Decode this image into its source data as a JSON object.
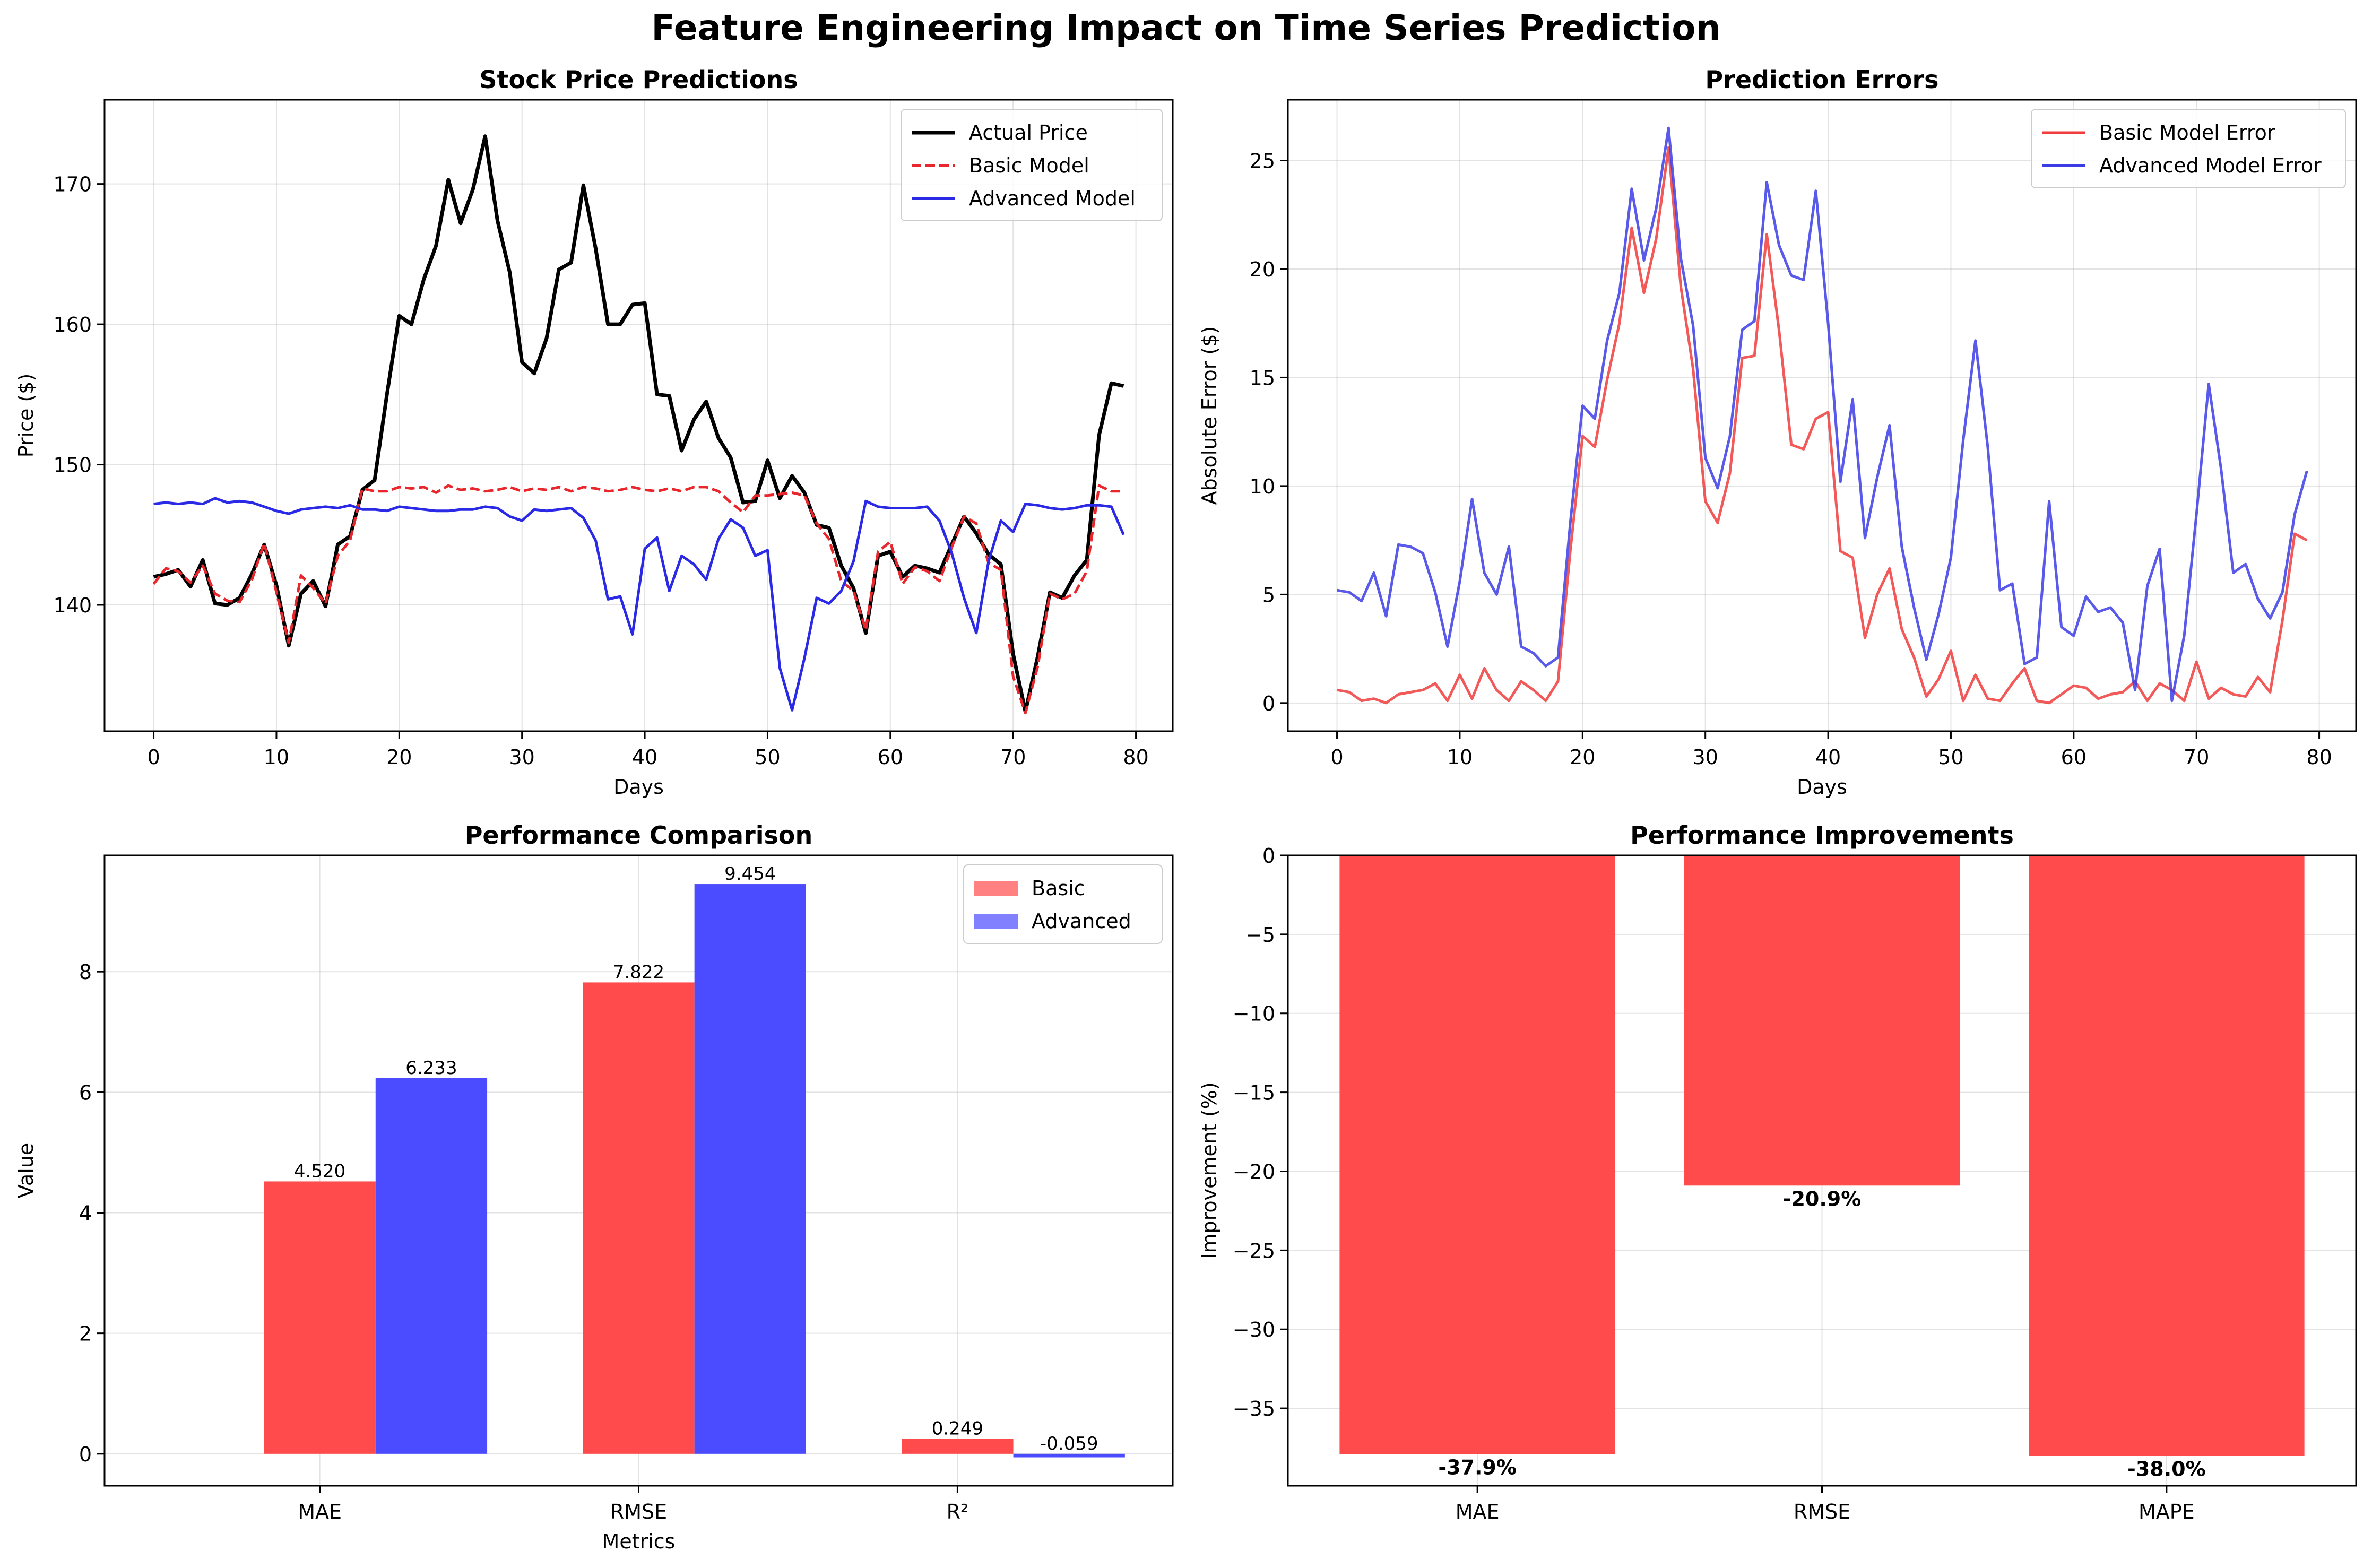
{
  "figure": {
    "title": "Feature Engineering Impact on Time Series Prediction"
  },
  "chart_data": [
    {
      "type": "line",
      "title": "Stock Price Predictions",
      "xlabel": "Days",
      "ylabel": "Price ($)",
      "xlim": [
        -4,
        83
      ],
      "ylim": [
        131,
        176
      ],
      "xticks": [
        0,
        10,
        20,
        30,
        40,
        50,
        60,
        70,
        80
      ],
      "yticks": [
        140,
        150,
        160,
        170
      ],
      "grid": true,
      "legend": "top-right",
      "x": [
        0,
        1,
        2,
        3,
        4,
        5,
        6,
        7,
        8,
        9,
        10,
        11,
        12,
        13,
        14,
        15,
        16,
        17,
        18,
        19,
        20,
        21,
        22,
        23,
        24,
        25,
        26,
        27,
        28,
        29,
        30,
        31,
        32,
        33,
        34,
        35,
        36,
        37,
        38,
        39,
        40,
        41,
        42,
        43,
        44,
        45,
        46,
        47,
        48,
        49,
        50,
        51,
        52,
        53,
        54,
        55,
        56,
        57,
        58,
        59,
        60,
        61,
        62,
        63,
        64,
        65,
        66,
        67,
        68,
        69,
        70,
        71,
        72,
        73,
        74,
        75,
        76,
        77,
        78,
        79
      ],
      "series": [
        {
          "name": "Actual Price",
          "color": "#000000",
          "style": "solid",
          "values": [
            142.0,
            142.2,
            142.5,
            141.3,
            143.2,
            140.1,
            140.0,
            140.5,
            142.2,
            144.3,
            141.4,
            137.1,
            140.8,
            141.7,
            139.9,
            144.3,
            144.9,
            148.2,
            148.9,
            155.0,
            160.6,
            160.0,
            163.2,
            165.6,
            170.3,
            167.2,
            169.6,
            173.4,
            167.4,
            163.7,
            157.3,
            156.5,
            159.0,
            163.9,
            164.4,
            169.9,
            165.4,
            160.0,
            160.0,
            161.4,
            161.5,
            155.0,
            154.9,
            151.0,
            153.2,
            154.5,
            151.9,
            150.5,
            147.3,
            147.4,
            150.3,
            147.6,
            149.2,
            148.0,
            145.7,
            145.5,
            142.8,
            141.2,
            138.0,
            143.5,
            143.8,
            142.0,
            142.8,
            142.6,
            142.3,
            144.3,
            146.3,
            145.1,
            143.6,
            142.9,
            136.5,
            132.4,
            136.3,
            140.9,
            140.5,
            142.1,
            143.2,
            152.1,
            155.8,
            155.6
          ]
        },
        {
          "name": "Basic Model",
          "color": "#e8262b",
          "style": "dashed",
          "values": [
            141.5,
            142.6,
            142.4,
            141.6,
            142.8,
            140.8,
            140.3,
            140.2,
            141.8,
            144.4,
            140.9,
            137.3,
            142.1,
            141.2,
            140.1,
            143.5,
            144.6,
            148.3,
            148.1,
            148.1,
            148.4,
            148.3,
            148.4,
            148.0,
            148.5,
            148.2,
            148.3,
            148.1,
            148.2,
            148.4,
            148.1,
            148.3,
            148.2,
            148.4,
            148.1,
            148.4,
            148.3,
            148.1,
            148.2,
            148.4,
            148.2,
            148.1,
            148.3,
            148.1,
            148.4,
            148.4,
            148.1,
            147.3,
            146.6,
            147.8,
            147.8,
            147.9,
            148.0,
            147.8,
            145.8,
            144.7,
            141.7,
            141.0,
            138.2,
            143.8,
            144.5,
            141.5,
            142.7,
            142.4,
            141.7,
            144.1,
            146.3,
            145.8,
            143.0,
            142.5,
            134.9,
            132.3,
            135.6,
            140.8,
            140.4,
            140.8,
            142.4,
            148.5,
            148.1,
            148.1
          ]
        },
        {
          "name": "Advanced Model",
          "color": "#2a2ae6",
          "style": "solid",
          "values": [
            147.2,
            147.3,
            147.2,
            147.3,
            147.2,
            147.6,
            147.3,
            147.4,
            147.3,
            147.0,
            146.7,
            146.5,
            146.8,
            146.9,
            147.0,
            146.9,
            147.1,
            146.8,
            146.8,
            146.7,
            147.0,
            146.9,
            146.8,
            146.7,
            146.7,
            146.8,
            146.8,
            147.0,
            146.9,
            146.3,
            146.0,
            146.8,
            146.7,
            146.8,
            146.9,
            146.2,
            144.6,
            140.4,
            140.6,
            137.9,
            144.0,
            144.8,
            141.0,
            143.5,
            142.9,
            141.8,
            144.7,
            146.1,
            145.5,
            143.5,
            143.9,
            135.5,
            132.5,
            136.2,
            140.5,
            140.1,
            141.0,
            143.1,
            147.4,
            147.0,
            146.9,
            146.9,
            146.9,
            147.0,
            146.0,
            143.7,
            140.5,
            138.0,
            143.1,
            146.0,
            145.2,
            147.2,
            147.1,
            146.9,
            146.8,
            146.9,
            147.1,
            147.1,
            147.0,
            145.0
          ]
        }
      ]
    },
    {
      "type": "line",
      "title": "Prediction Errors",
      "xlabel": "Days",
      "ylabel": "Absolute Error ($)",
      "xlim": [
        -4,
        83
      ],
      "ylim": [
        -1.3,
        27.8
      ],
      "xticks": [
        0,
        10,
        20,
        30,
        40,
        50,
        60,
        70,
        80
      ],
      "yticks": [
        0,
        5,
        10,
        15,
        20,
        25
      ],
      "grid": true,
      "legend": "top-right",
      "x": [
        0,
        1,
        2,
        3,
        4,
        5,
        6,
        7,
        8,
        9,
        10,
        11,
        12,
        13,
        14,
        15,
        16,
        17,
        18,
        19,
        20,
        21,
        22,
        23,
        24,
        25,
        26,
        27,
        28,
        29,
        30,
        31,
        32,
        33,
        34,
        35,
        36,
        37,
        38,
        39,
        40,
        41,
        42,
        43,
        44,
        45,
        46,
        47,
        48,
        49,
        50,
        51,
        52,
        53,
        54,
        55,
        56,
        57,
        58,
        59,
        60,
        61,
        62,
        63,
        64,
        65,
        66,
        67,
        68,
        69,
        70,
        71,
        72,
        73,
        74,
        75,
        76,
        77,
        78,
        79
      ],
      "series": [
        {
          "name": "Basic Model Error",
          "color": "#f03c3c",
          "style": "solid",
          "values": [
            0.6,
            0.5,
            0.1,
            0.2,
            0.0,
            0.4,
            0.5,
            0.6,
            0.9,
            0.1,
            1.3,
            0.2,
            1.6,
            0.6,
            0.1,
            1.0,
            0.6,
            0.1,
            1.0,
            7.0,
            12.3,
            11.8,
            14.9,
            17.5,
            21.9,
            18.9,
            21.4,
            25.6,
            19.2,
            15.4,
            9.3,
            8.3,
            10.6,
            15.9,
            16.0,
            21.6,
            17.2,
            11.9,
            11.7,
            13.1,
            13.4,
            7.0,
            6.7,
            3.0,
            5.0,
            6.2,
            3.4,
            2.1,
            0.3,
            1.1,
            2.4,
            0.1,
            1.3,
            0.2,
            0.1,
            0.9,
            1.6,
            0.1,
            0.0,
            0.4,
            0.8,
            0.7,
            0.2,
            0.4,
            0.5,
            1.0,
            0.1,
            0.9,
            0.6,
            0.1,
            1.9,
            0.2,
            0.7,
            0.4,
            0.3,
            1.2,
            0.5,
            3.8,
            7.8,
            7.5
          ]
        },
        {
          "name": "Advanced Model Error",
          "color": "#3c3ce6",
          "style": "solid",
          "values": [
            5.2,
            5.1,
            4.7,
            6.0,
            4.0,
            7.3,
            7.2,
            6.9,
            5.1,
            2.6,
            5.6,
            9.4,
            6.0,
            5.0,
            7.2,
            2.6,
            2.3,
            1.7,
            2.1,
            8.3,
            13.7,
            13.1,
            16.7,
            18.9,
            23.7,
            20.4,
            22.8,
            26.5,
            20.5,
            17.4,
            11.3,
            9.9,
            12.3,
            17.2,
            17.6,
            24.0,
            21.1,
            19.7,
            19.5,
            23.6,
            17.5,
            10.2,
            14.0,
            7.6,
            10.4,
            12.8,
            7.2,
            4.4,
            2.0,
            4.1,
            6.7,
            12.1,
            16.7,
            11.8,
            5.2,
            5.5,
            1.8,
            2.1,
            9.3,
            3.5,
            3.1,
            4.9,
            4.2,
            4.4,
            3.7,
            0.6,
            5.4,
            7.1,
            0.1,
            3.1,
            8.7,
            14.7,
            10.8,
            6.0,
            6.4,
            4.8,
            3.9,
            5.1,
            8.7,
            10.7
          ]
        }
      ]
    },
    {
      "type": "bar",
      "title": "Performance Comparison",
      "xlabel": "Metrics",
      "ylabel": "Value",
      "ylim": [
        -0.53,
        9.93
      ],
      "yticks": [
        0,
        2,
        4,
        6,
        8
      ],
      "grid": true,
      "legend": "top-right",
      "categories": [
        "MAE",
        "RMSE",
        "R²"
      ],
      "series": [
        {
          "name": "Basic",
          "color": "#ff4b4b",
          "values": [
            4.52,
            7.822,
            0.249
          ],
          "labels": [
            "4.520",
            "7.822",
            "0.249"
          ]
        },
        {
          "name": "Advanced",
          "color": "#4b4bff",
          "values": [
            6.233,
            9.454,
            -0.059
          ],
          "labels": [
            "6.233",
            "9.454",
            "-0.059"
          ]
        }
      ]
    },
    {
      "type": "bar",
      "title": "Performance Improvements",
      "xlabel": "",
      "ylabel": "Improvement (%)",
      "ylim": [
        -39.9,
        0
      ],
      "yticks": [
        0,
        -5,
        -10,
        -15,
        -20,
        -25,
        -30,
        -35
      ],
      "grid": true,
      "categories": [
        "MAE",
        "RMSE",
        "MAPE"
      ],
      "values": [
        -37.9,
        -20.9,
        -38.0
      ],
      "labels": [
        "-37.9%",
        "-20.9%",
        "-38.0%"
      ],
      "color": "#ff4b4b"
    }
  ]
}
